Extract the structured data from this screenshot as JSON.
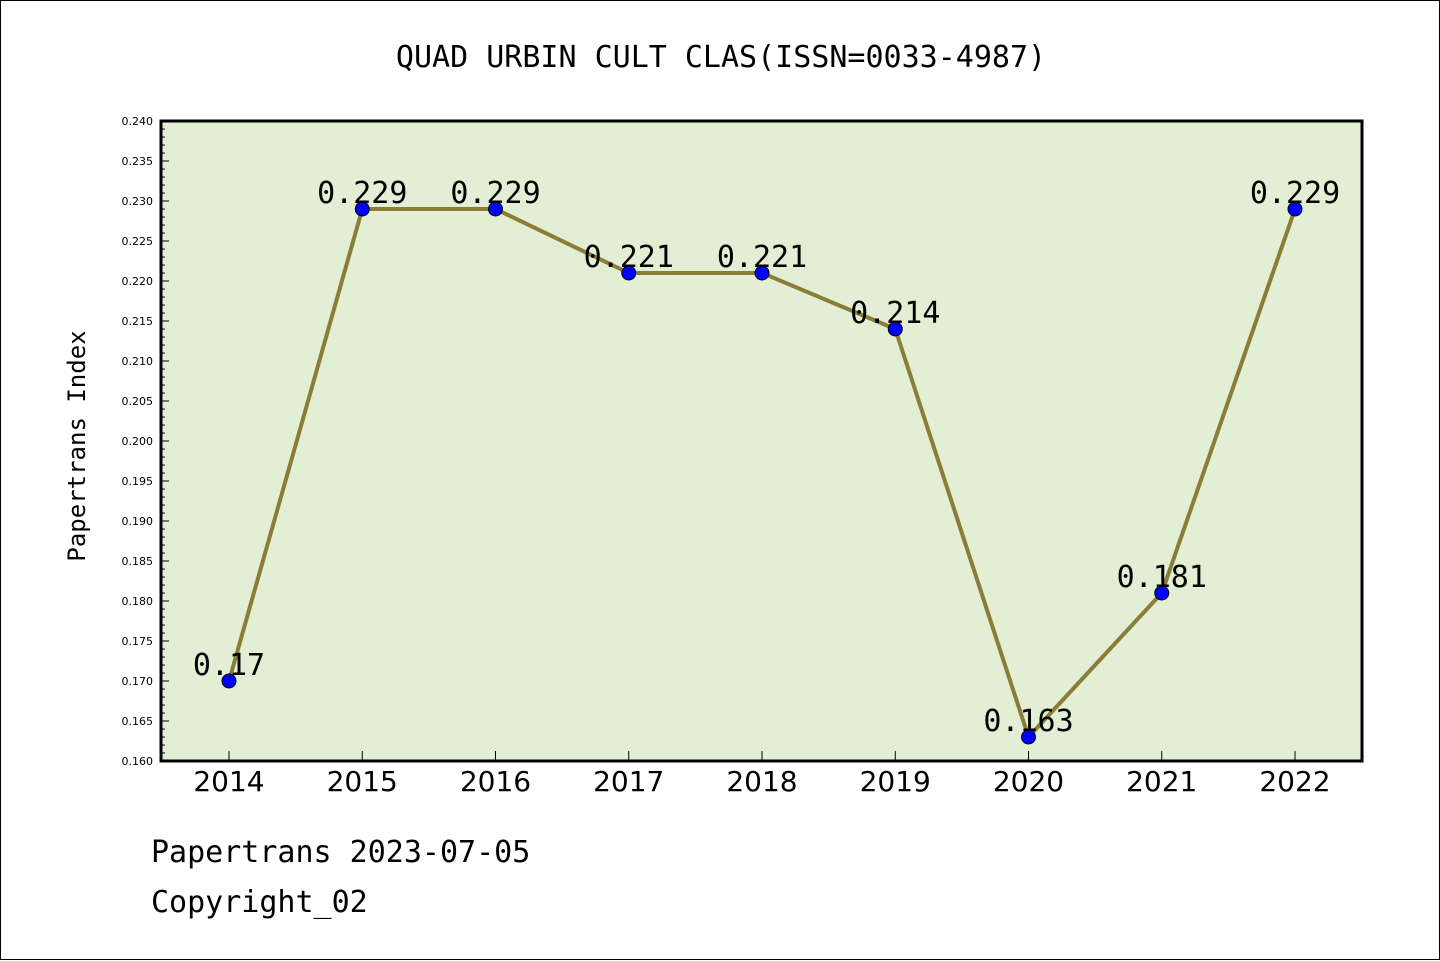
{
  "chart_data": {
    "type": "line",
    "title": "QUAD URBIN CULT CLAS(ISSN=0033-4987)",
    "xlabel": "",
    "ylabel": "Papertrans Index",
    "categories": [
      "2014",
      "2015",
      "2016",
      "2017",
      "2018",
      "2019",
      "2020",
      "2021",
      "2022"
    ],
    "values": [
      0.17,
      0.229,
      0.229,
      0.221,
      0.221,
      0.214,
      0.163,
      0.181,
      0.229
    ],
    "data_labels": [
      "0.17",
      "0.229",
      "0.229",
      "0.221",
      "0.221",
      "0.214",
      "0.163",
      "0.181",
      "0.229"
    ],
    "ylim": [
      0.16,
      0.24
    ],
    "yticks": [
      "0.160",
      "0.165",
      "0.170",
      "0.175",
      "0.180",
      "0.185",
      "0.190",
      "0.195",
      "0.200",
      "0.205",
      "0.210",
      "0.215",
      "0.220",
      "0.225",
      "0.230",
      "0.235",
      "0.240"
    ],
    "grid": false,
    "colors": {
      "plot_background": "#e2efd5",
      "line": "#8b7d37",
      "marker": "#0000ff"
    }
  },
  "footer": {
    "source": "Papertrans 2023-07-05",
    "copyright": "Copyright_02"
  }
}
